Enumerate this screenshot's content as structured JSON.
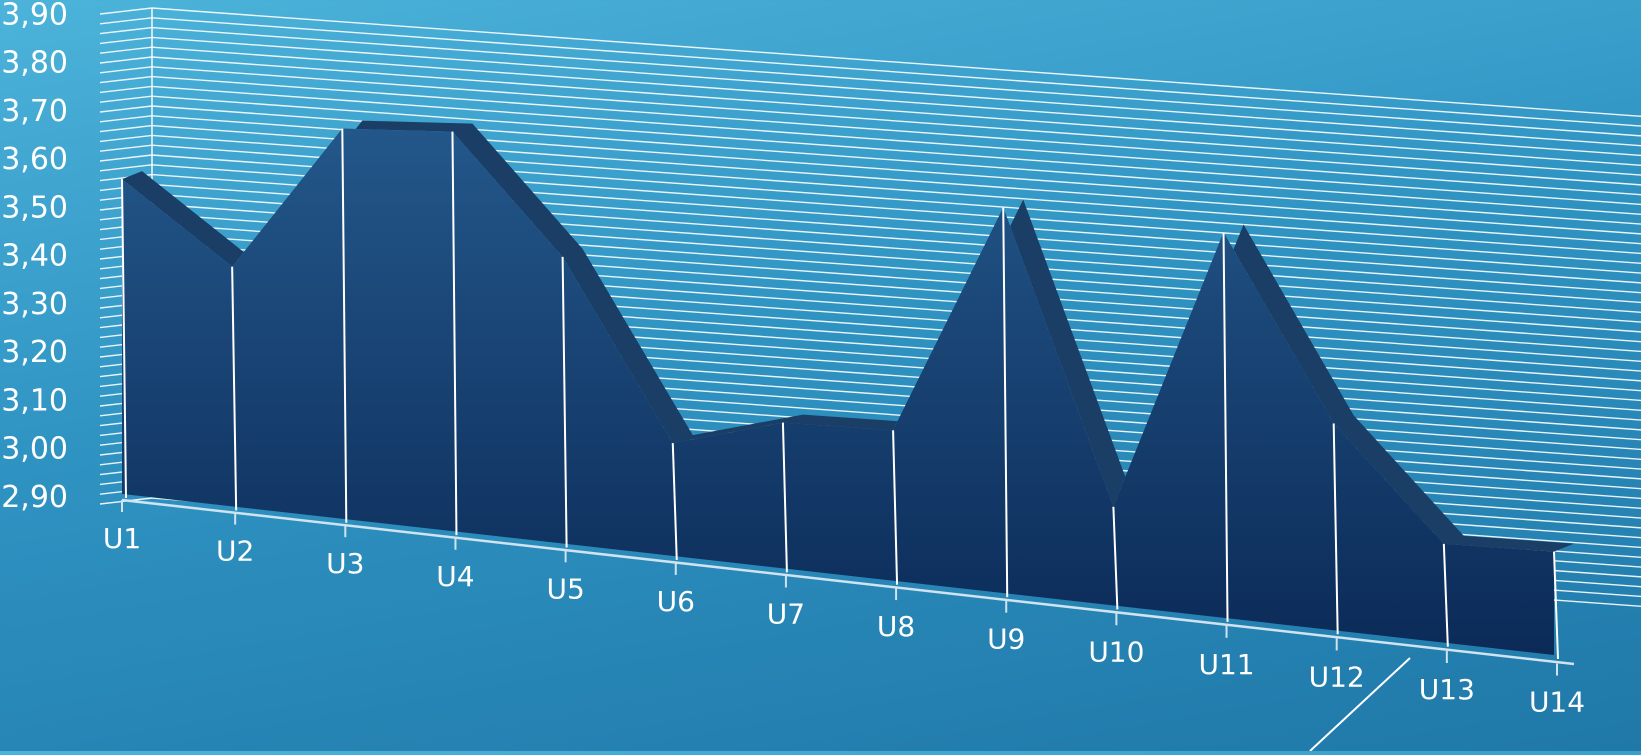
{
  "chart_data": {
    "type": "area",
    "categories": [
      "U1",
      "U2",
      "U3",
      "U4",
      "U5",
      "U6",
      "U7",
      "U8",
      "U9",
      "U10",
      "U11",
      "U12",
      "U13",
      "U14"
    ],
    "series": [
      {
        "values": [
          3.57,
          3.41,
          3.73,
          3.75,
          3.51,
          3.14,
          3.21,
          3.22,
          3.72,
          3.11,
          3.72,
          3.34,
          3.11,
          3.12
        ]
      }
    ],
    "ylim": [
      2.9,
      3.9
    ],
    "yticks": [
      "2,90",
      "3,00",
      "3,10",
      "3,20",
      "3,30",
      "3,40",
      "3,50",
      "3,60",
      "3,70",
      "3,80",
      "3,90"
    ],
    "style": "3d",
    "grid": true,
    "legend": "none",
    "colors": {
      "area_top": "#23578a",
      "area_bottom": "#0b2a57",
      "ridge": "#1a3e66",
      "gridline": "#ffffff",
      "text": "#ffffff"
    }
  }
}
